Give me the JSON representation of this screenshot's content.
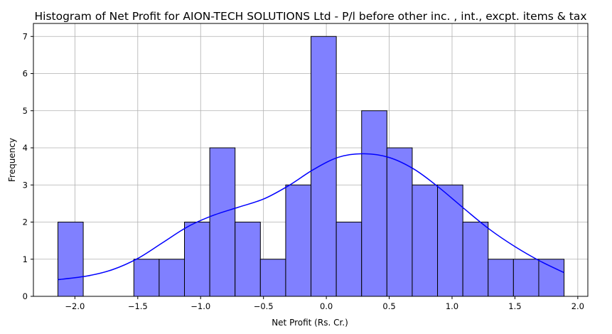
{
  "chart_data": {
    "type": "bar",
    "title": "Histogram of Net Profit for AION-TECH SOLUTIONS Ltd - P/l before other inc. , int., excpt. items & tax",
    "xlabel": "Net Profit (Rs. Cr.)",
    "ylabel": "Frequency",
    "xlim": [
      -2.33,
      2.08
    ],
    "ylim": [
      0,
      7.35
    ],
    "grid": true,
    "x_ticks": [
      -2.0,
      -1.5,
      -1.0,
      -0.5,
      0.0,
      0.5,
      1.0,
      1.5,
      2.0
    ],
    "x_tick_labels": [
      "−2.0",
      "−1.5",
      "−1.0",
      "−0.5",
      "0.0",
      "0.5",
      "1.0",
      "1.5",
      "2.0"
    ],
    "y_ticks": [
      0,
      1,
      2,
      3,
      4,
      5,
      6,
      7
    ],
    "y_tick_labels": [
      "0",
      "1",
      "2",
      "3",
      "4",
      "5",
      "6",
      "7"
    ],
    "bins": {
      "start": -2.135,
      "width": 0.2013,
      "counts": [
        2,
        0,
        0,
        1,
        1,
        2,
        4,
        2,
        1,
        3,
        7,
        2,
        5,
        4,
        3,
        3,
        2,
        1,
        1,
        1
      ]
    },
    "bar_color": "#8080ff",
    "bar_edge_color": "#000000",
    "kde": {
      "color": "#0000ff",
      "x": [
        -2.135,
        -1.9,
        -1.7,
        -1.5,
        -1.3,
        -1.1,
        -0.9,
        -0.7,
        -0.5,
        -0.3,
        -0.1,
        0.1,
        0.3,
        0.5,
        0.7,
        0.9,
        1.1,
        1.3,
        1.5,
        1.7,
        1.89
      ],
      "y": [
        0.45,
        0.55,
        0.72,
        1.02,
        1.45,
        1.88,
        2.18,
        2.4,
        2.62,
        2.98,
        3.42,
        3.75,
        3.84,
        3.74,
        3.42,
        2.92,
        2.35,
        1.8,
        1.34,
        0.95,
        0.64
      ]
    }
  }
}
